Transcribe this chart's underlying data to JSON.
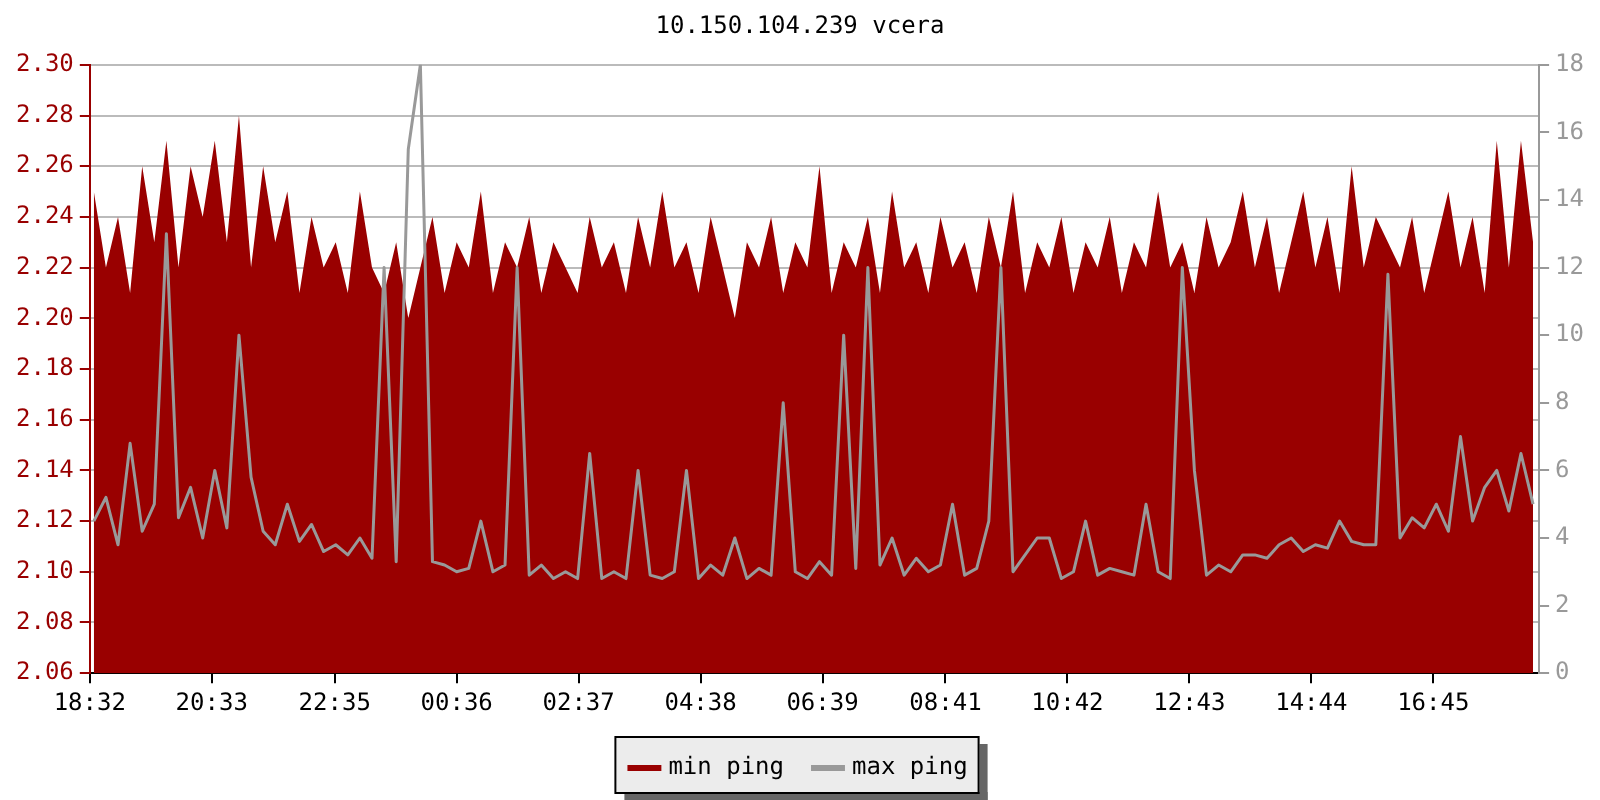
{
  "chart_data": {
    "type": "area",
    "title": "10.150.104.239 vcera",
    "x": [
      "--01-01T18:36",
      "--01-01T18:48",
      "--01-01T19:00",
      "--01-01T19:12",
      "--01-01T19:24",
      "--01-01T19:36",
      "--01-01T19:48",
      "--01-01T20:00",
      "--01-01T20:12",
      "--01-01T20:24",
      "--01-01T20:36",
      "--01-01T20:48",
      "--01-01T21:00",
      "--01-01T21:12",
      "--01-01T21:24",
      "--01-01T21:36",
      "--01-01T21:48",
      "--01-01T22:00",
      "--01-01T22:12",
      "--01-01T22:24",
      "--01-01T22:36",
      "--01-01T22:48",
      "--01-01T23:00",
      "--01-01T23:12",
      "--01-01T23:24",
      "--01-01T23:36",
      "--01-01T23:48",
      "--01-02T00:00",
      "--01-02T00:12",
      "--01-02T00:24",
      "--01-02T00:36",
      "--01-02T00:48",
      "--01-02T01:00",
      "--01-02T01:12",
      "--01-02T01:24",
      "--01-02T01:36",
      "--01-02T01:48",
      "--01-02T02:00",
      "--01-02T02:12",
      "--01-02T02:24",
      "--01-02T02:36",
      "--01-02T02:48",
      "--01-02T03:00",
      "--01-02T03:12",
      "--01-02T03:24",
      "--01-02T03:36",
      "--01-02T03:48",
      "--01-02T04:00",
      "--01-02T04:12",
      "--01-02T04:24",
      "--01-02T04:36",
      "--01-02T04:48",
      "--01-02T05:00",
      "--01-02T05:12",
      "--01-02T05:24",
      "--01-02T05:36",
      "--01-02T05:48",
      "--01-02T06:00",
      "--01-02T06:12",
      "--01-02T06:24",
      "--01-02T06:36",
      "--01-02T06:48",
      "--01-02T07:00",
      "--01-02T07:12",
      "--01-02T07:24",
      "--01-02T07:36",
      "--01-02T07:48",
      "--01-02T08:00",
      "--01-02T08:12",
      "--01-02T08:24",
      "--01-02T08:36",
      "--01-02T08:48",
      "--01-02T09:00",
      "--01-02T09:12",
      "--01-02T09:24",
      "--01-02T09:36",
      "--01-02T09:48",
      "--01-02T10:00",
      "--01-02T10:12",
      "--01-02T10:24",
      "--01-02T10:36",
      "--01-02T10:48",
      "--01-02T11:00",
      "--01-02T11:12",
      "--01-02T11:24",
      "--01-02T11:36",
      "--01-02T11:48",
      "--01-02T12:00",
      "--01-02T12:12",
      "--01-02T12:24",
      "--01-02T12:36",
      "--01-02T12:48",
      "--01-02T13:00",
      "--01-02T13:12",
      "--01-02T13:24",
      "--01-02T13:36",
      "--01-02T13:48",
      "--01-02T14:00",
      "--01-02T14:12",
      "--01-02T14:24",
      "--01-02T14:36",
      "--01-02T14:48",
      "--01-02T15:00",
      "--01-02T15:12",
      "--01-02T15:24",
      "--01-02T15:36",
      "--01-02T15:48",
      "--01-02T16:00",
      "--01-02T16:12",
      "--01-02T16:24",
      "--01-02T16:36",
      "--01-02T16:48",
      "--01-02T17:00",
      "--01-02T17:12",
      "--01-02T17:24",
      "--01-02T17:36",
      "--01-02T17:48",
      "--01-02T18:00",
      "--01-02T18:12",
      "--01-02T18:24"
    ],
    "series": [
      {
        "name": "min ping",
        "color": "#990000",
        "values": [
          2.25,
          2.22,
          2.24,
          2.21,
          2.26,
          2.23,
          2.27,
          2.22,
          2.26,
          2.24,
          2.27,
          2.23,
          2.28,
          2.22,
          2.26,
          2.23,
          2.25,
          2.21,
          2.24,
          2.22,
          2.23,
          2.21,
          2.25,
          2.22,
          2.21,
          2.23,
          2.2,
          2.22,
          2.24,
          2.21,
          2.23,
          2.22,
          2.25,
          2.21,
          2.23,
          2.22,
          2.24,
          2.21,
          2.23,
          2.22,
          2.21,
          2.24,
          2.22,
          2.23,
          2.21,
          2.24,
          2.22,
          2.25,
          2.22,
          2.23,
          2.21,
          2.24,
          2.22,
          2.2,
          2.23,
          2.22,
          2.24,
          2.21,
          2.23,
          2.22,
          2.26,
          2.21,
          2.23,
          2.22,
          2.24,
          2.21,
          2.25,
          2.22,
          2.23,
          2.21,
          2.24,
          2.22,
          2.23,
          2.21,
          2.24,
          2.22,
          2.25,
          2.21,
          2.23,
          2.22,
          2.24,
          2.21,
          2.23,
          2.22,
          2.24,
          2.21,
          2.23,
          2.22,
          2.25,
          2.22,
          2.23,
          2.21,
          2.24,
          2.22,
          2.23,
          2.25,
          2.22,
          2.24,
          2.21,
          2.23,
          2.25,
          2.22,
          2.24,
          2.21,
          2.26,
          2.22,
          2.24,
          2.23,
          2.22,
          2.24,
          2.21,
          2.23,
          2.25,
          2.22,
          2.24,
          2.21,
          2.27,
          2.22,
          2.27,
          2.23
        ]
      },
      {
        "name": "max ping",
        "type": "line",
        "axis": "y2",
        "color": "#999999",
        "values": [
          4.5,
          5.2,
          3.8,
          6.8,
          4.2,
          5.0,
          13.0,
          4.6,
          5.5,
          4.0,
          6.0,
          4.3,
          10.0,
          5.8,
          4.2,
          3.8,
          5.0,
          3.9,
          4.4,
          3.6,
          3.8,
          3.5,
          4.0,
          3.4,
          12.0,
          3.3,
          15.5,
          18.0,
          3.3,
          3.2,
          3.0,
          3.1,
          4.5,
          3.0,
          3.2,
          12.0,
          2.9,
          3.2,
          2.8,
          3.0,
          2.8,
          6.5,
          2.8,
          3.0,
          2.8,
          6.0,
          2.9,
          2.8,
          3.0,
          6.0,
          2.8,
          3.2,
          2.9,
          4.0,
          2.8,
          3.1,
          2.9,
          8.0,
          3.0,
          2.8,
          3.3,
          2.9,
          10.0,
          3.1,
          12.0,
          3.2,
          4.0,
          2.9,
          3.4,
          3.0,
          3.2,
          5.0,
          2.9,
          3.1,
          4.5,
          12.0,
          3.0,
          3.5,
          4.0,
          4.0,
          2.8,
          3.0,
          4.5,
          2.9,
          3.1,
          3.0,
          2.9,
          5.0,
          3.0,
          2.8,
          12.0,
          6.0,
          2.9,
          3.2,
          3.0,
          3.5,
          3.5,
          3.4,
          3.8,
          4.0,
          3.6,
          3.8,
          3.7,
          4.5,
          3.9,
          3.8,
          3.8,
          11.8,
          4.0,
          4.6,
          4.3,
          5.0,
          4.2,
          7.0,
          4.5,
          5.5,
          6.0,
          4.8,
          6.5,
          5.0
        ]
      }
    ],
    "xlim": [
      "--01-01T18:32",
      "--01-02T18:30"
    ],
    "xticks": [
      {
        "value": "--01-01T18:32",
        "label": "18:32"
      },
      {
        "value": "--01-01T20:33",
        "label": "20:33"
      },
      {
        "value": "--01-01T22:35",
        "label": "22:35"
      },
      {
        "value": "--01-02T00:36",
        "label": "00:36"
      },
      {
        "value": "--01-02T02:37",
        "label": "02:37"
      },
      {
        "value": "--01-02T04:38",
        "label": "04:38"
      },
      {
        "value": "--01-02T06:39",
        "label": "06:39"
      },
      {
        "value": "--01-02T08:41",
        "label": "08:41"
      },
      {
        "value": "--01-02T10:42",
        "label": "10:42"
      },
      {
        "value": "--01-02T12:43",
        "label": "12:43"
      },
      {
        "value": "--01-02T14:44",
        "label": "14:44"
      },
      {
        "value": "--01-02T16:45",
        "label": "16:45"
      }
    ],
    "ylim": [
      2.06,
      2.3
    ],
    "yticks": [
      {
        "value": 2.06,
        "label": "2.06"
      },
      {
        "value": 2.08,
        "label": "2.08"
      },
      {
        "value": 2.1,
        "label": "2.10"
      },
      {
        "value": 2.12,
        "label": "2.12"
      },
      {
        "value": 2.14,
        "label": "2.14"
      },
      {
        "value": 2.16,
        "label": "2.16"
      },
      {
        "value": 2.18,
        "label": "2.18"
      },
      {
        "value": 2.2,
        "label": "2.20"
      },
      {
        "value": 2.22,
        "label": "2.22"
      },
      {
        "value": 2.24,
        "label": "2.24"
      },
      {
        "value": 2.26,
        "label": "2.26"
      },
      {
        "value": 2.28,
        "label": "2.28"
      },
      {
        "value": 2.3,
        "label": "2.30"
      }
    ],
    "y2lim": [
      0,
      18
    ],
    "y2ticks": [
      0,
      2,
      4,
      6,
      8,
      10,
      12,
      14,
      16,
      18
    ],
    "grid": "y",
    "legend": "bottom",
    "marker": "none"
  }
}
